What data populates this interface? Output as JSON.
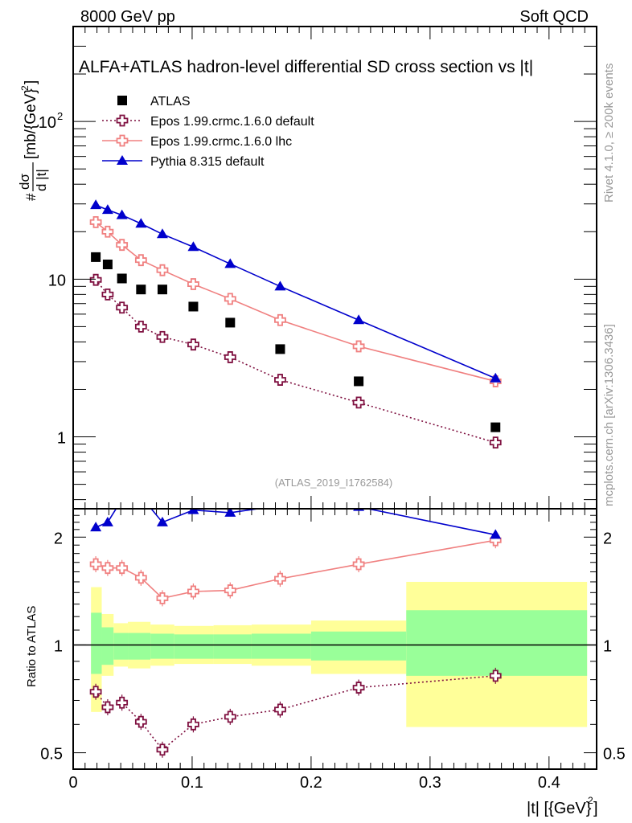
{
  "header": {
    "left": "8000 GeV pp",
    "right": "Soft QCD"
  },
  "side_labels": {
    "rivet": "Rivet 4.1.0, ≥ 200k events",
    "mcplots": "mcplots.cern.ch [arXiv:1306.3436]"
  },
  "chart_data": [
    {
      "type": "scatter",
      "title": "ALFA+ATLAS hadron-level differential SD cross section vs |t|",
      "watermark": "(ATLAS_2019_I1762584)",
      "ylabel": "#dσ/d|t| [mb/{GeV}^2]",
      "ylabel_parts": {
        "prefix": "#",
        "num": "dσ",
        "den": "d |t|",
        "unit": "[mb/{GeV}",
        "unit_sup": "2",
        "unit_end": "]"
      },
      "yscale": "log",
      "ylim": [
        0.35,
        400
      ],
      "xlim": [
        0,
        0.44
      ],
      "yticks": [
        {
          "value": 1,
          "label": "1"
        },
        {
          "value": 10,
          "label": "10"
        },
        {
          "value": 100,
          "label": "10",
          "sup": "2"
        }
      ],
      "legend_position": "top-left",
      "x": [
        0.019,
        0.029,
        0.041,
        0.057,
        0.075,
        0.101,
        0.132,
        0.174,
        0.24,
        0.355
      ],
      "series": [
        {
          "name": "ATLAS",
          "marker": "square",
          "color": "#000000",
          "line": "none",
          "values": [
            13.8,
            12.4,
            10.1,
            8.6,
            8.6,
            6.7,
            5.3,
            3.6,
            2.25,
            1.15
          ]
        },
        {
          "name": "Epos 1.99.crmc.1.6.0 default",
          "marker": "open-cross",
          "color": "#7f1040",
          "line": "dotted",
          "values": [
            9.9,
            8.0,
            6.6,
            5.0,
            4.3,
            3.85,
            3.2,
            2.3,
            1.65,
            0.92
          ]
        },
        {
          "name": "Epos 1.99.crmc.1.6.0 lhc",
          "marker": "open-cross",
          "color": "#f08080",
          "line": "solid",
          "values": [
            23.0,
            20.0,
            16.5,
            13.2,
            11.4,
            9.3,
            7.5,
            5.5,
            3.75,
            2.25
          ]
        },
        {
          "name": "Pythia 8.315 default",
          "marker": "triangle",
          "color": "#0000cc",
          "line": "solid",
          "values": [
            29.5,
            27.5,
            25.5,
            22.5,
            19.3,
            16.0,
            12.5,
            9.0,
            5.5,
            2.35
          ]
        }
      ]
    },
    {
      "type": "scatter",
      "ylabel": "Ratio to ATLAS",
      "xlabel": "|t| [{GeV}^2]",
      "xlabel_parts": {
        "main": "|t| [{GeV}",
        "sup": "2",
        "end": "]"
      },
      "yscale": "log",
      "ylim": [
        0.45,
        2.4
      ],
      "xlim": [
        0,
        0.44
      ],
      "xticks": [
        {
          "value": 0,
          "label": "0"
        },
        {
          "value": 0.1,
          "label": "0.1"
        },
        {
          "value": 0.2,
          "label": "0.2"
        },
        {
          "value": 0.3,
          "label": "0.3"
        },
        {
          "value": 0.4,
          "label": "0.4"
        }
      ],
      "yticks": [
        {
          "value": 0.5,
          "label": "0.5"
        },
        {
          "value": 1,
          "label": "1"
        },
        {
          "value": 2,
          "label": "2"
        }
      ],
      "reference_line": 1,
      "bins": [
        {
          "lo": 0.015,
          "hi": 0.024,
          "stat": [
            0.83,
            1.23
          ],
          "total": [
            0.65,
            1.45
          ]
        },
        {
          "lo": 0.024,
          "hi": 0.034,
          "stat": [
            0.88,
            1.12
          ],
          "total": [
            0.82,
            1.22
          ]
        },
        {
          "lo": 0.034,
          "hi": 0.046,
          "stat": [
            0.91,
            1.08
          ],
          "total": [
            0.87,
            1.15
          ]
        },
        {
          "lo": 0.046,
          "hi": 0.065,
          "stat": [
            0.91,
            1.08
          ],
          "total": [
            0.86,
            1.16
          ]
        },
        {
          "lo": 0.065,
          "hi": 0.085,
          "stat": [
            0.915,
            1.075
          ],
          "total": [
            0.875,
            1.14
          ]
        },
        {
          "lo": 0.085,
          "hi": 0.118,
          "stat": [
            0.915,
            1.07
          ],
          "total": [
            0.885,
            1.13
          ]
        },
        {
          "lo": 0.118,
          "hi": 0.15,
          "stat": [
            0.915,
            1.07
          ],
          "total": [
            0.885,
            1.135
          ]
        },
        {
          "lo": 0.15,
          "hi": 0.2,
          "stat": [
            0.915,
            1.075
          ],
          "total": [
            0.875,
            1.14
          ]
        },
        {
          "lo": 0.2,
          "hi": 0.28,
          "stat": [
            0.905,
            1.09
          ],
          "total": [
            0.83,
            1.17
          ]
        },
        {
          "lo": 0.28,
          "hi": 0.432,
          "stat": [
            0.82,
            1.25
          ],
          "total": [
            0.59,
            1.5
          ]
        }
      ],
      "series": [
        {
          "name": "Epos 1.99.crmc.1.6.0 default",
          "color": "#7f1040",
          "line": "dotted",
          "values": [
            0.74,
            0.67,
            0.69,
            0.61,
            0.51,
            0.6,
            0.63,
            0.66,
            0.76,
            0.82
          ]
        },
        {
          "name": "Epos 1.99.crmc.1.6.0 lhc",
          "color": "#f08080",
          "line": "solid",
          "values": [
            1.68,
            1.64,
            1.64,
            1.54,
            1.35,
            1.41,
            1.42,
            1.53,
            1.68,
            1.96
          ]
        },
        {
          "name": "Pythia 8.315 default",
          "color": "#0000cc",
          "line": "solid",
          "values": [
            2.13,
            2.2,
            2.55,
            2.6,
            2.2,
            2.38,
            2.34,
            2.45,
            2.43,
            2.03
          ]
        }
      ]
    }
  ]
}
